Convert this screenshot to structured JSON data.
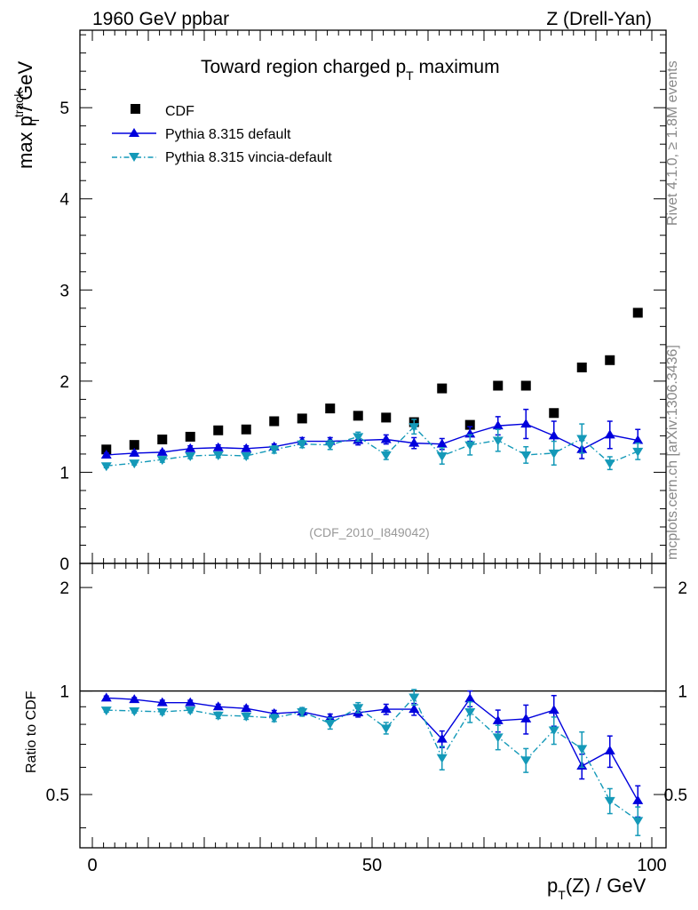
{
  "header": {
    "left": "1960 GeV ppbar",
    "right": "Z (Drell-Yan)"
  },
  "side_labels": {
    "rivet": "Rivet 4.1.0, ≥ 1.8M events",
    "mcplots": "mcplots.cern.ch [arXiv:1306.3436]"
  },
  "chart_data": [
    {
      "type": "scatter",
      "panel": "main",
      "title_main": "Toward region charged p",
      "title_sub": "T",
      "title_tail": " maximum",
      "ylabel_main": "max p",
      "ylabel_sup": "track",
      "ylabel_sub": "T",
      "ylabel_tail": " / GeV",
      "analysis_tag": "(CDF_2010_I849042)",
      "xlim": [
        0,
        100
      ],
      "ylim": [
        0,
        5.85
      ],
      "y_ticks": [
        "1",
        "2",
        "3",
        "4",
        "5"
      ],
      "y_tick_values": [
        1,
        2,
        3,
        4,
        5
      ],
      "y_zero_label": "0",
      "x": [
        2.5,
        7.5,
        12.5,
        17.5,
        22.5,
        27.5,
        32.5,
        37.5,
        42.5,
        47.5,
        52.5,
        57.5,
        62.5,
        67.5,
        72.5,
        77.5,
        82.5,
        87.5,
        92.5,
        97.5
      ],
      "series": [
        {
          "name": "CDF",
          "color": "#000000",
          "marker": "square",
          "values": [
            1.25,
            1.3,
            1.36,
            1.39,
            1.46,
            1.47,
            1.56,
            1.59,
            1.7,
            1.62,
            1.6,
            1.55,
            1.92,
            1.52,
            1.95,
            1.95,
            1.65,
            2.15,
            2.23,
            2.75
          ]
        },
        {
          "name": "Pythia 8.315 default",
          "color": "#0000dd",
          "marker": "triangle-up",
          "line": "solid",
          "values": [
            1.19,
            1.21,
            1.22,
            1.26,
            1.27,
            1.26,
            1.28,
            1.34,
            1.34,
            1.35,
            1.36,
            1.32,
            1.31,
            1.42,
            1.51,
            1.53,
            1.4,
            1.25,
            1.41,
            1.35
          ],
          "errors": [
            0.02,
            0.02,
            0.02,
            0.03,
            0.03,
            0.03,
            0.03,
            0.04,
            0.04,
            0.05,
            0.05,
            0.06,
            0.06,
            0.08,
            0.1,
            0.16,
            0.16,
            0.1,
            0.15,
            0.12
          ]
        },
        {
          "name": "Pythia 8.315 vincia-default",
          "color": "#1499b8",
          "marker": "triangle-down",
          "line": "dashdot",
          "values": [
            1.07,
            1.1,
            1.14,
            1.18,
            1.19,
            1.18,
            1.25,
            1.31,
            1.3,
            1.39,
            1.19,
            1.5,
            1.18,
            1.3,
            1.35,
            1.19,
            1.21,
            1.37,
            1.1,
            1.23
          ],
          "errors": [
            0.02,
            0.02,
            0.03,
            0.03,
            0.03,
            0.03,
            0.04,
            0.04,
            0.05,
            0.05,
            0.05,
            0.08,
            0.09,
            0.11,
            0.12,
            0.09,
            0.13,
            0.16,
            0.07,
            0.09
          ]
        }
      ]
    },
    {
      "type": "scatter",
      "panel": "ratio",
      "ylabel": "Ratio to CDF",
      "xlabel_main": "p",
      "xlabel_sub": "T",
      "xlabel_tail": "(Z) / GeV",
      "xlim": [
        0,
        100
      ],
      "ylim": [
        0.35,
        2.35
      ],
      "x_ticks": [
        "0",
        "50",
        "100"
      ],
      "x_tick_values": [
        0,
        50,
        100
      ],
      "y_ticks": [
        "0.5",
        "1",
        "2"
      ],
      "y_tick_values": [
        0.5,
        1,
        2
      ],
      "x": [
        2.5,
        7.5,
        12.5,
        17.5,
        22.5,
        27.5,
        32.5,
        37.5,
        42.5,
        47.5,
        52.5,
        57.5,
        62.5,
        67.5,
        72.5,
        77.5,
        82.5,
        87.5,
        92.5,
        97.5
      ],
      "series": [
        {
          "name": "Pythia 8.315 default",
          "color": "#0000dd",
          "marker": "triangle-up",
          "line": "solid",
          "values": [
            0.955,
            0.945,
            0.925,
            0.925,
            0.9,
            0.89,
            0.86,
            0.87,
            0.835,
            0.865,
            0.885,
            0.885,
            0.725,
            0.95,
            0.82,
            0.83,
            0.88,
            0.605,
            0.67,
            0.48
          ],
          "errors": [
            0.012,
            0.012,
            0.015,
            0.015,
            0.015,
            0.015,
            0.018,
            0.02,
            0.022,
            0.025,
            0.03,
            0.035,
            0.04,
            0.05,
            0.06,
            0.08,
            0.09,
            0.05,
            0.07,
            0.05
          ]
        },
        {
          "name": "Pythia 8.315 vincia-default",
          "color": "#1499b8",
          "marker": "triangle-down",
          "line": "dashdot",
          "values": [
            0.88,
            0.875,
            0.87,
            0.88,
            0.85,
            0.845,
            0.835,
            0.87,
            0.805,
            0.895,
            0.78,
            0.96,
            0.64,
            0.87,
            0.735,
            0.63,
            0.77,
            0.68,
            0.48,
            0.42
          ],
          "errors": [
            0.012,
            0.012,
            0.015,
            0.015,
            0.018,
            0.018,
            0.02,
            0.025,
            0.03,
            0.03,
            0.03,
            0.05,
            0.05,
            0.06,
            0.06,
            0.05,
            0.07,
            0.08,
            0.04,
            0.04
          ]
        }
      ]
    }
  ]
}
